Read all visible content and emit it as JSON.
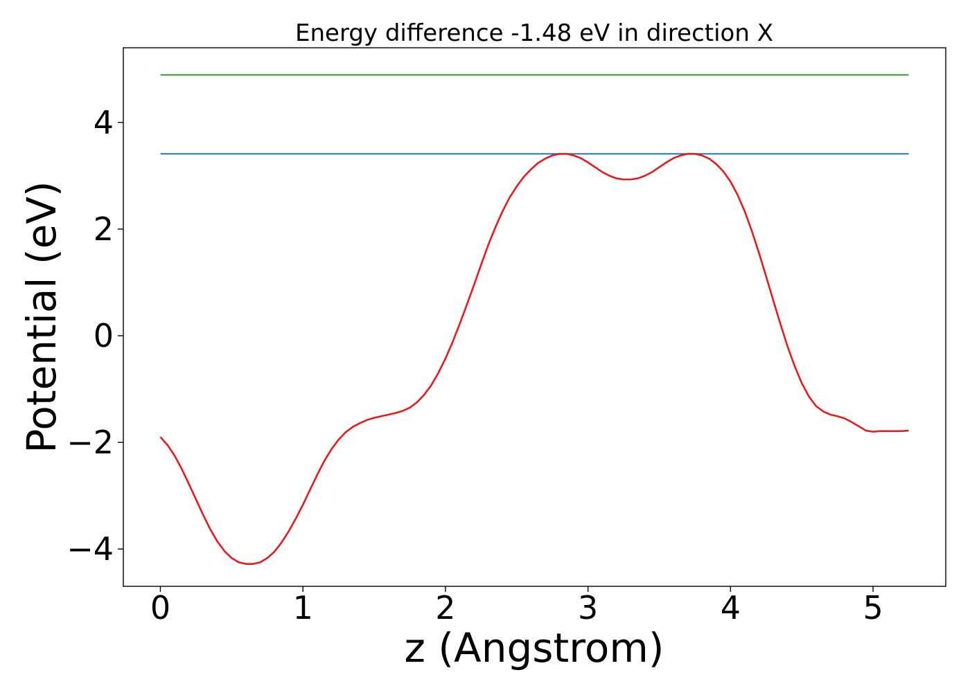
{
  "chart_data": {
    "type": "line",
    "title": "Energy difference -1.48 eV in direction X",
    "xlabel": "z (Angstrom)",
    "ylabel": "Potential (eV)",
    "xlim": [
      -0.26,
      5.51
    ],
    "ylim": [
      -4.7,
      5.4
    ],
    "xticks": [
      0,
      1,
      2,
      3,
      4,
      5
    ],
    "xtick_labels": [
      "0",
      "1",
      "2",
      "3",
      "4",
      "5"
    ],
    "yticks": [
      -4,
      -2,
      0,
      2,
      4
    ],
    "ytick_labels": [
      "−4",
      "−2",
      "0",
      "2",
      "4"
    ],
    "grid": false,
    "series": [
      {
        "color": "#1f77b4",
        "x": [
          0,
          5.25
        ],
        "y": [
          3.41,
          3.41
        ]
      },
      {
        "color": "#2ca02c",
        "x": [
          0,
          5.25
        ],
        "y": [
          4.89,
          4.89
        ]
      },
      {
        "color": "#e41a1c",
        "x": [
          0,
          0.05,
          0.1,
          0.15,
          0.2,
          0.25,
          0.3,
          0.35,
          0.4,
          0.45,
          0.5,
          0.55,
          0.6,
          0.65,
          0.7,
          0.75,
          0.8,
          0.85,
          0.9,
          0.95,
          1.0,
          1.05,
          1.1,
          1.15,
          1.2,
          1.25,
          1.3,
          1.35,
          1.4,
          1.45,
          1.5,
          1.55,
          1.6,
          1.65,
          1.7,
          1.75,
          1.8,
          1.85,
          1.9,
          1.95,
          2.0,
          2.05,
          2.1,
          2.15,
          2.2,
          2.25,
          2.3,
          2.35,
          2.4,
          2.45,
          2.5,
          2.55,
          2.6,
          2.65,
          2.7,
          2.75,
          2.8,
          2.85,
          2.9,
          2.95,
          3.0,
          3.05,
          3.1,
          3.15,
          3.2,
          3.25,
          3.3,
          3.35,
          3.4,
          3.45,
          3.5,
          3.55,
          3.6,
          3.65,
          3.7,
          3.75,
          3.8,
          3.85,
          3.9,
          3.95,
          4.0,
          4.05,
          4.1,
          4.15,
          4.2,
          4.25,
          4.3,
          4.35,
          4.4,
          4.45,
          4.5,
          4.55,
          4.6,
          4.65,
          4.7,
          4.75,
          4.8,
          4.85,
          4.9,
          4.95,
          5.0,
          5.05,
          5.1,
          5.15,
          5.2,
          5.25
        ],
        "y": [
          -1.9,
          -2.05,
          -2.25,
          -2.5,
          -2.78,
          -3.07,
          -3.36,
          -3.63,
          -3.86,
          -4.04,
          -4.17,
          -4.25,
          -4.28,
          -4.28,
          -4.25,
          -4.17,
          -4.05,
          -3.88,
          -3.67,
          -3.43,
          -3.17,
          -2.89,
          -2.61,
          -2.35,
          -2.13,
          -1.95,
          -1.81,
          -1.71,
          -1.64,
          -1.58,
          -1.54,
          -1.51,
          -1.48,
          -1.45,
          -1.41,
          -1.35,
          -1.25,
          -1.11,
          -0.93,
          -0.7,
          -0.43,
          -0.12,
          0.22,
          0.58,
          0.95,
          1.33,
          1.7,
          2.03,
          2.33,
          2.59,
          2.8,
          2.98,
          3.12,
          3.24,
          3.32,
          3.38,
          3.41,
          3.41,
          3.38,
          3.33,
          3.25,
          3.16,
          3.07,
          3.0,
          2.95,
          2.93,
          2.93,
          2.95,
          3.0,
          3.07,
          3.16,
          3.25,
          3.33,
          3.38,
          3.41,
          3.41,
          3.38,
          3.32,
          3.22,
          3.08,
          2.89,
          2.64,
          2.33,
          1.96,
          1.55,
          1.11,
          0.66,
          0.22,
          -0.2,
          -0.57,
          -0.89,
          -1.14,
          -1.32,
          -1.42,
          -1.48,
          -1.51,
          -1.55,
          -1.62,
          -1.7,
          -1.78,
          -1.8,
          -1.79,
          -1.79,
          -1.79,
          -1.79,
          -1.78
        ]
      }
    ]
  }
}
